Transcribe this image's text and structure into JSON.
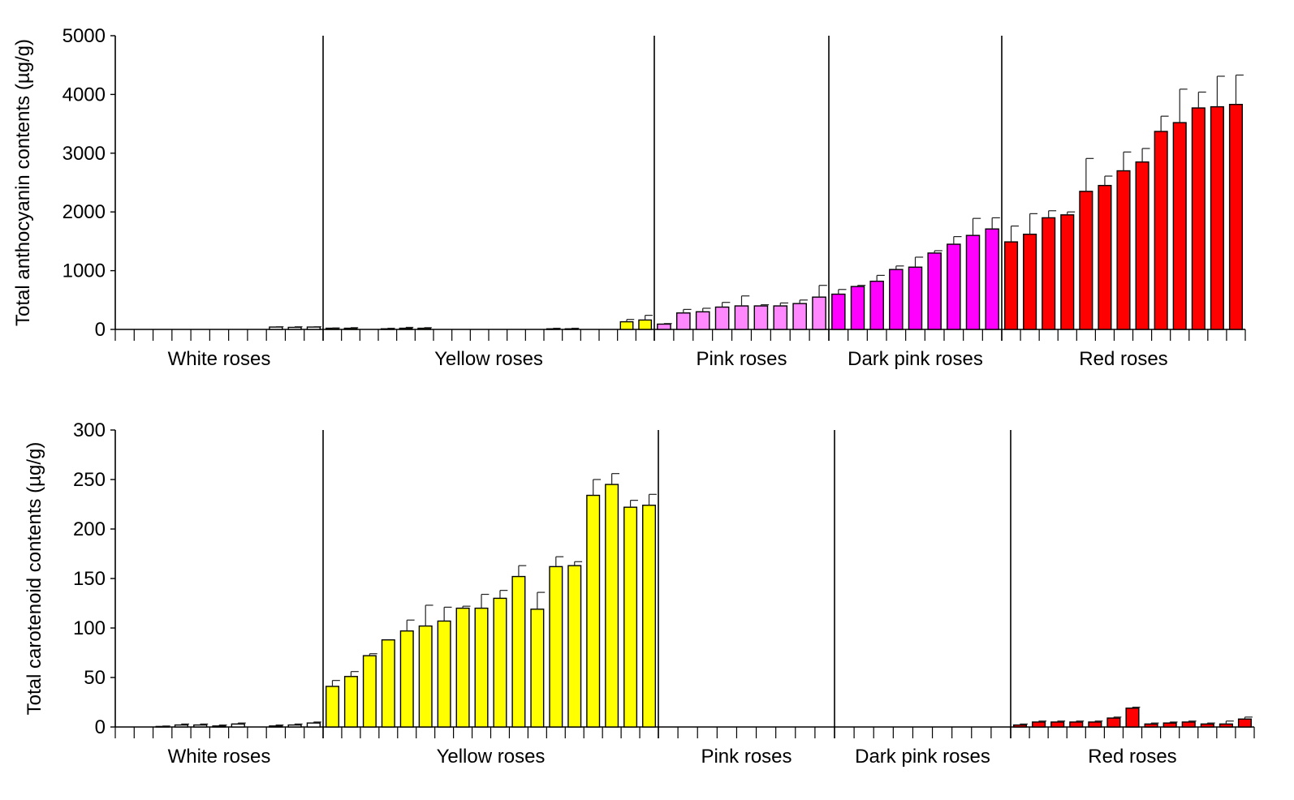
{
  "chart_data": [
    {
      "type": "bar",
      "ylabel": "Total anthocyanin contents (µg/g)",
      "ylim": [
        0,
        5000
      ],
      "yticks": [
        "0",
        "1000",
        "2000",
        "3000",
        "4000",
        "5000"
      ],
      "groups": [
        {
          "label": "White roses",
          "color": "#ffffff",
          "values": [
            0,
            0,
            0,
            0,
            0,
            5,
            5,
            5,
            40,
            35,
            40
          ],
          "errors": [
            0,
            0,
            0,
            0,
            0,
            10,
            10,
            10,
            5,
            10,
            5
          ]
        },
        {
          "label": "Yellow roses",
          "color": "#ffff00",
          "values": [
            20,
            20,
            0,
            10,
            20,
            20,
            0,
            0,
            0,
            0,
            0,
            0,
            10,
            10,
            0,
            0,
            130,
            160
          ],
          "errors": [
            5,
            10,
            0,
            10,
            15,
            10,
            0,
            0,
            0,
            0,
            0,
            0,
            10,
            10,
            0,
            0,
            40,
            80
          ]
        },
        {
          "label": "Pink roses",
          "color": "#ff88ff",
          "values": [
            90,
            280,
            300,
            380,
            400,
            400,
            400,
            440,
            550
          ],
          "errors": [
            10,
            60,
            60,
            80,
            170,
            20,
            50,
            60,
            200
          ]
        },
        {
          "label": "Dark pink roses",
          "color": "#ff00ff",
          "values": [
            600,
            730,
            820,
            1020,
            1060,
            1300,
            1450,
            1600,
            1710
          ],
          "errors": [
            80,
            20,
            100,
            60,
            170,
            40,
            130,
            290,
            190
          ]
        },
        {
          "label": "Red roses",
          "color": "#ff0000",
          "values": [
            1490,
            1620,
            1900,
            1950,
            2350,
            2450,
            2700,
            2850,
            3370,
            3520,
            3770,
            3790,
            3830
          ],
          "errors": [
            270,
            350,
            120,
            50,
            560,
            160,
            320,
            230,
            260,
            570,
            270,
            520,
            500
          ]
        }
      ]
    },
    {
      "type": "bar",
      "ylabel": "Total carotenoid contents (µg/g)",
      "ylim": [
        0,
        300
      ],
      "yticks": [
        "0",
        "50",
        "100",
        "150",
        "200",
        "250",
        "300"
      ],
      "groups": [
        {
          "label": "White roses",
          "color": "#ffffff",
          "values": [
            0,
            0,
            0.5,
            2,
            2,
            1,
            3,
            0,
            1,
            2,
            4
          ],
          "errors": [
            0,
            0,
            0.5,
            1,
            1,
            1,
            1,
            0,
            1,
            1,
            1
          ]
        },
        {
          "label": "Yellow roses",
          "color": "#ffff00",
          "values": [
            41,
            51,
            72,
            88,
            97,
            102,
            107,
            120,
            120,
            130,
            152,
            119,
            162,
            163,
            234,
            245,
            222,
            224
          ],
          "errors": [
            6,
            5,
            2,
            0,
            11,
            21,
            14,
            2,
            14,
            8,
            11,
            17,
            10,
            4,
            16,
            11,
            7,
            11
          ]
        },
        {
          "label": "Pink roses",
          "color": "#ff88ff",
          "values": [
            0,
            0,
            0,
            0,
            0,
            0,
            0,
            0,
            0
          ],
          "errors": [
            0,
            0,
            0,
            0,
            0,
            0,
            0,
            0,
            0
          ]
        },
        {
          "label": "Dark pink roses",
          "color": "#ff00ff",
          "values": [
            0,
            0,
            0,
            0,
            0,
            0,
            0,
            0,
            0
          ],
          "errors": [
            0,
            0,
            0,
            0,
            0,
            0,
            0,
            0,
            0
          ]
        },
        {
          "label": "Red roses",
          "color": "#ff0000",
          "values": [
            2,
            5,
            5,
            5,
            5,
            9,
            19,
            3,
            4,
            5,
            3,
            3,
            8
          ],
          "errors": [
            1,
            1,
            1,
            1,
            1,
            1,
            1,
            1,
            1,
            1,
            1,
            3,
            2
          ]
        }
      ]
    }
  ]
}
